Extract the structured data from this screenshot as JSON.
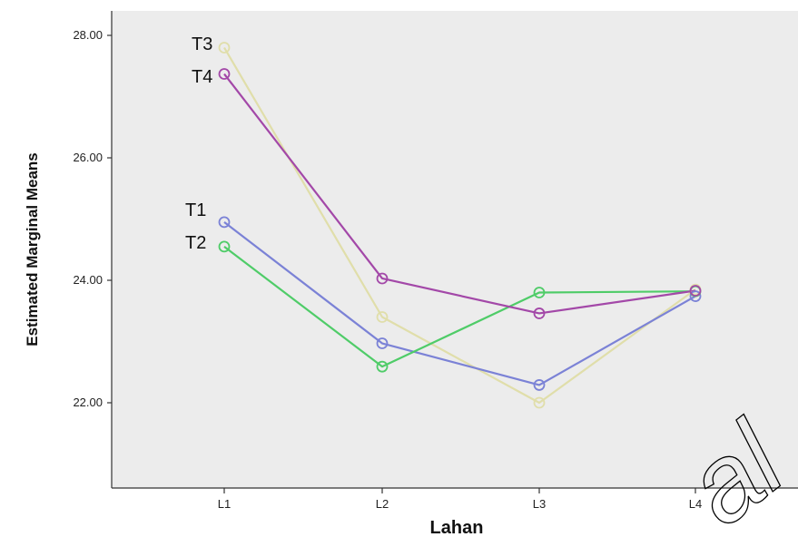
{
  "chart_data": {
    "type": "line",
    "title": "",
    "xlabel": "Lahan",
    "ylabel": "Estimated Marginal Means",
    "categories": [
      "L1",
      "L2",
      "L3",
      "L4"
    ],
    "y_ticks": [
      "22.00",
      "24.00",
      "26.00",
      "28.00"
    ],
    "y_tick_values": [
      22,
      24,
      26,
      28
    ],
    "ylim": [
      20,
      28.4
    ],
    "grid": false,
    "legend": "none (series labels placed next to L1 points)",
    "series": [
      {
        "name": "T1",
        "color": "#7b82d6",
        "values": [
          24.95,
          22.97,
          22.29,
          23.74
        ]
      },
      {
        "name": "T2",
        "color": "#4fcc68",
        "values": [
          24.55,
          22.59,
          23.8,
          23.82
        ]
      },
      {
        "name": "T3",
        "color": "#e0deaa",
        "values": [
          27.8,
          23.4,
          22.0,
          23.85
        ]
      },
      {
        "name": "T4",
        "color": "#a348a8",
        "values": [
          27.37,
          24.03,
          23.46,
          23.83
        ]
      }
    ],
    "watermark": "al"
  },
  "colors": {
    "plot_background": "#ececec",
    "axis": "#333333",
    "watermark": "#000000"
  }
}
